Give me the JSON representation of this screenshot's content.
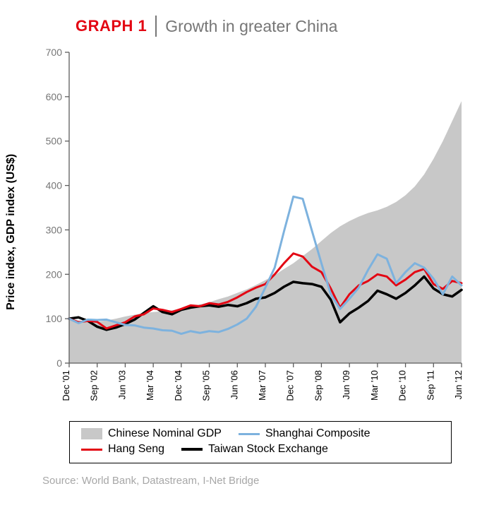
{
  "title": {
    "label": "GRAPH 1",
    "label_color": "#E30613",
    "text": "Growth in greater China",
    "text_color": "#767676"
  },
  "ylabel": "Price index, GDP index (US$)",
  "source": "Source: World Bank, Datastream, I-Net Bridge",
  "chart": {
    "type": "line+area",
    "plot_bg": "#ffffff",
    "axis_color": "#5c5c5c",
    "grid_color": "#e0e0e0",
    "tick_label_color": "#767676",
    "ylim": [
      0,
      700
    ],
    "ytick_step": 100,
    "xlabels": [
      "Dec '01",
      "Sep '02",
      "Jun '03",
      "Mar '04",
      "Dec '04",
      "Sep '05",
      "Jun '06",
      "Mar '07",
      "Dec '07",
      "Sep '08",
      "Jun '09",
      "Mar '10",
      "Dec '10",
      "Sep '11",
      "Jun '12"
    ],
    "x_count": 43,
    "series": {
      "gdp": {
        "label": "Chinese Nominal GDP",
        "color": "#C8C8C8",
        "area": true,
        "values": [
          100,
          96,
          93,
          93,
          96,
          100,
          105,
          109,
          113,
          115,
          117,
          119,
          123,
          127,
          132,
          137,
          144,
          150,
          158,
          166,
          176,
          187,
          198,
          212,
          225,
          241,
          257,
          275,
          293,
          308,
          320,
          330,
          338,
          344,
          352,
          363,
          378,
          398,
          425,
          460,
          500,
          545,
          590
        ]
      },
      "shanghai": {
        "label": "Shanghai Composite",
        "color": "#7DB2DE",
        "line_width": 3,
        "values": [
          100,
          90,
          98,
          97,
          98,
          92,
          86,
          85,
          80,
          78,
          74,
          73,
          66,
          72,
          68,
          72,
          70,
          77,
          87,
          100,
          127,
          170,
          215,
          297,
          375,
          370,
          297,
          225,
          155,
          122,
          145,
          170,
          210,
          245,
          235,
          180,
          205,
          225,
          215,
          190,
          155,
          195,
          175
        ]
      },
      "hangseng": {
        "label": "Hang Seng",
        "color": "#E30613",
        "line_width": 3,
        "values": [
          100,
          92,
          95,
          93,
          78,
          85,
          92,
          105,
          110,
          123,
          120,
          115,
          122,
          130,
          128,
          135,
          132,
          138,
          148,
          160,
          170,
          178,
          200,
          225,
          247,
          240,
          217,
          205,
          168,
          125,
          155,
          175,
          185,
          200,
          195,
          175,
          188,
          205,
          212,
          178,
          167,
          185,
          180
        ]
      },
      "taiwan": {
        "label": "Taiwan Stock Exchange",
        "color": "#000000",
        "line_width": 3.5,
        "values": [
          100,
          103,
          95,
          82,
          75,
          80,
          88,
          98,
          113,
          128,
          115,
          110,
          120,
          125,
          128,
          130,
          127,
          131,
          128,
          135,
          145,
          148,
          158,
          172,
          183,
          180,
          178,
          172,
          143,
          92,
          112,
          125,
          140,
          163,
          155,
          145,
          158,
          175,
          195,
          168,
          155,
          150,
          165
        ]
      }
    },
    "legend_order": [
      "gdp",
      "shanghai",
      "hangseng",
      "taiwan"
    ]
  }
}
